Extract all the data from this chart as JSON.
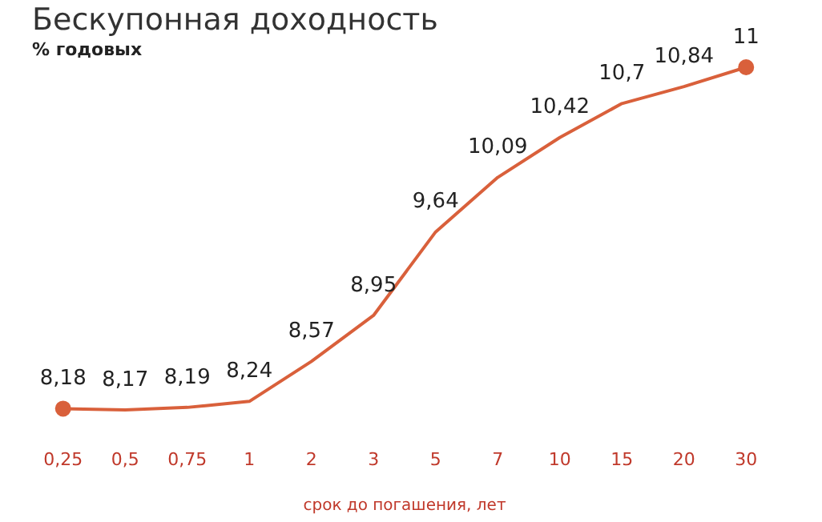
{
  "chart_data": {
    "type": "line",
    "title": "Бескупонная доходность",
    "subtitle": "% годовых",
    "xlabel": "срок до погашения, лет",
    "categories": [
      "0,25",
      "0,5",
      "0,75",
      "1",
      "2",
      "3",
      "5",
      "7",
      "10",
      "15",
      "20",
      "30"
    ],
    "series": [
      {
        "color": "#d9603b",
        "values": [
          8.18,
          8.17,
          8.19,
          8.24,
          8.57,
          8.95,
          9.64,
          10.09,
          10.42,
          10.7,
          10.84,
          11
        ],
        "value_labels": [
          "8,18",
          "8,17",
          "8,19",
          "8,24",
          "8,57",
          "8,95",
          "9,64",
          "10,09",
          "10,42",
          "10,7",
          "10,84",
          "11"
        ]
      }
    ],
    "grid": false,
    "legend": false,
    "tick_labels": "x"
  }
}
